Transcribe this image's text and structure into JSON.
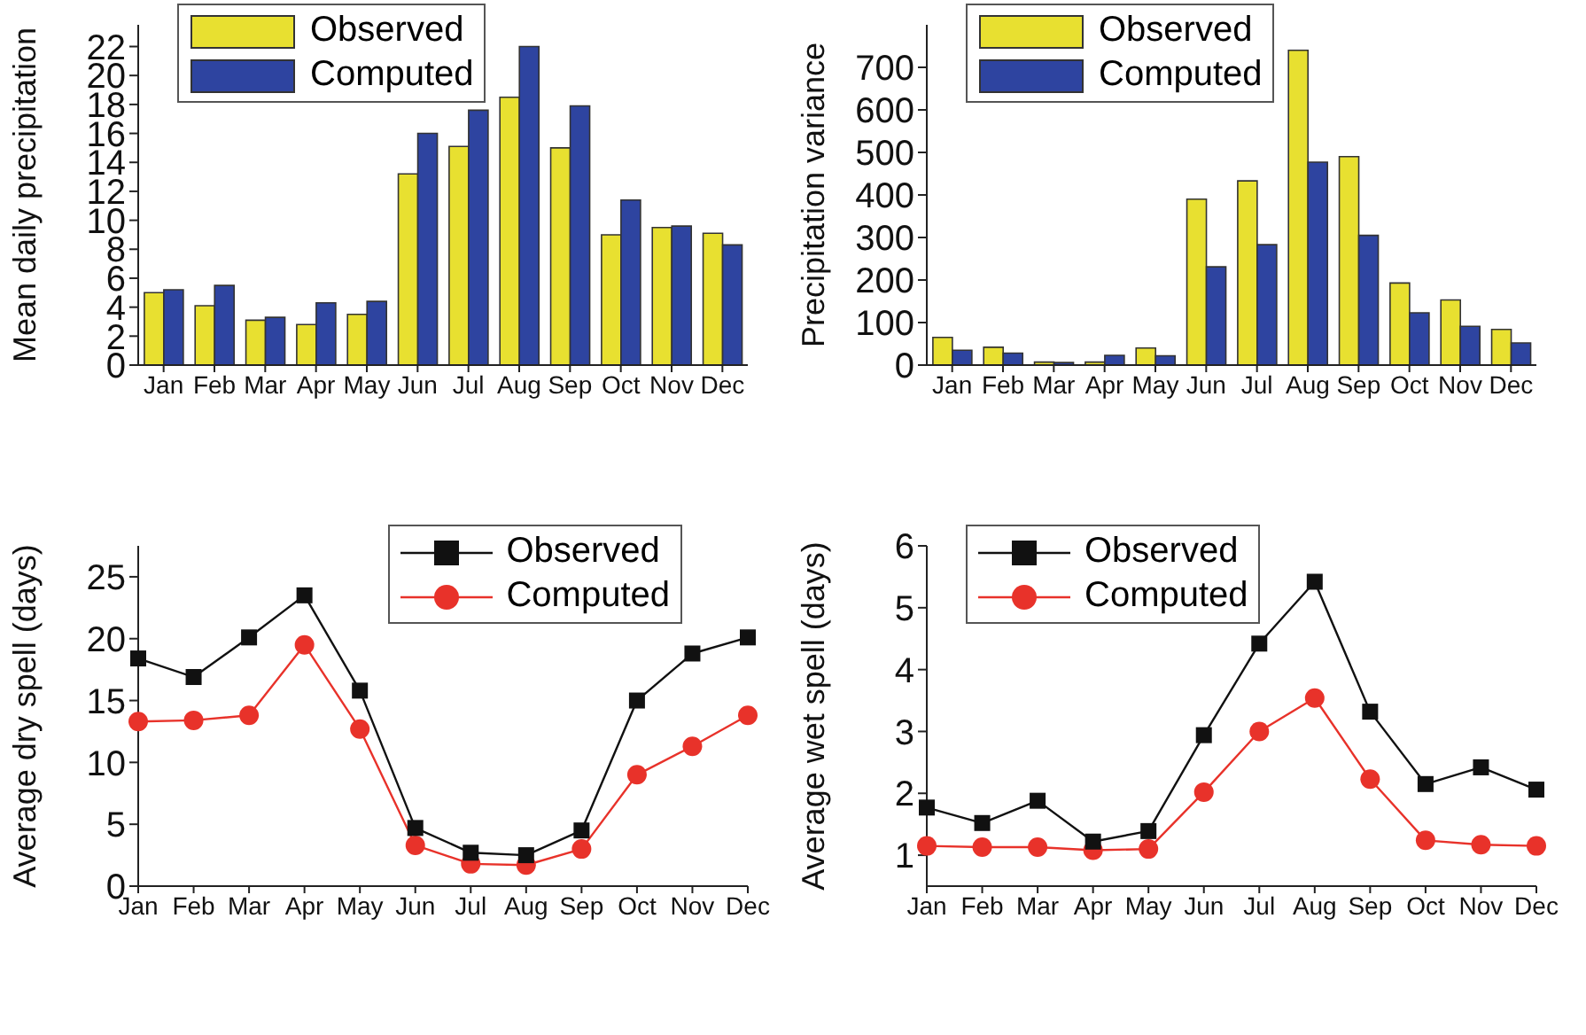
{
  "chart_data": [
    {
      "type": "bar",
      "ylabel": "Mean daily precipitation",
      "categories": [
        "Jan",
        "Feb",
        "Mar",
        "Apr",
        "May",
        "Jun",
        "Jul",
        "Aug",
        "Sep",
        "Oct",
        "Nov",
        "Dec"
      ],
      "ylim": [
        0,
        23.5
      ],
      "yticks": [
        0,
        2,
        4,
        6,
        8,
        10,
        12,
        14,
        16,
        18,
        20,
        22
      ],
      "legend": "top left",
      "grid": false,
      "series": [
        {
          "name": "Observed",
          "color": "#e8e030",
          "values": [
            5.0,
            4.1,
            3.1,
            2.8,
            3.5,
            13.2,
            15.1,
            18.5,
            15.0,
            9.0,
            9.5,
            9.1
          ]
        },
        {
          "name": "Computed",
          "color": "#2e44a0",
          "values": [
            5.2,
            5.5,
            3.3,
            4.3,
            4.4,
            16.0,
            17.6,
            22.0,
            17.9,
            11.4,
            9.6,
            8.3
          ]
        }
      ]
    },
    {
      "type": "bar",
      "ylabel": "Precipitation variance",
      "categories": [
        "Jan",
        "Feb",
        "Mar",
        "Apr",
        "May",
        "Jun",
        "Jul",
        "Aug",
        "Sep",
        "Oct",
        "Nov",
        "Dec"
      ],
      "ylim": [
        0,
        800
      ],
      "yticks": [
        0,
        100,
        200,
        300,
        400,
        500,
        600,
        700
      ],
      "legend": "top left",
      "grid": false,
      "series": [
        {
          "name": "Observed",
          "color": "#e8e030",
          "values": [
            65,
            42,
            7,
            7,
            40,
            390,
            433,
            740,
            490,
            193,
            153,
            84
          ]
        },
        {
          "name": "Computed",
          "color": "#2e44a0",
          "values": [
            35,
            28,
            6,
            23,
            22,
            231,
            283,
            477,
            305,
            123,
            91,
            52
          ]
        }
      ]
    },
    {
      "type": "line",
      "ylabel": "Average dry spell (days)",
      "categories": [
        "Jan",
        "Feb",
        "Mar",
        "Apr",
        "May",
        "Jun",
        "Jul",
        "Aug",
        "Sep",
        "Oct",
        "Nov",
        "Dec"
      ],
      "ylim": [
        0,
        27.5
      ],
      "yticks": [
        0,
        5,
        10,
        15,
        20,
        25
      ],
      "legend": "top right",
      "grid": false,
      "line_style": "solid",
      "series": [
        {
          "name": "Observed",
          "color": "#111111",
          "marker": "square",
          "values": [
            18.4,
            16.9,
            20.1,
            23.5,
            15.8,
            4.7,
            2.7,
            2.5,
            4.5,
            15.0,
            18.8,
            20.1
          ]
        },
        {
          "name": "Computed",
          "color": "#e8322a",
          "marker": "circle",
          "values": [
            13.3,
            13.4,
            13.8,
            19.5,
            12.7,
            3.3,
            1.8,
            1.7,
            3.0,
            9.0,
            11.3,
            13.8
          ]
        }
      ]
    },
    {
      "type": "line",
      "ylabel": "Average wet spell (days)",
      "categories": [
        "Jan",
        "Feb",
        "Mar",
        "Apr",
        "May",
        "Jun",
        "Jul",
        "Aug",
        "Sep",
        "Oct",
        "Nov",
        "Dec"
      ],
      "ylim": [
        0.5,
        6
      ],
      "yticks": [
        1,
        2,
        3,
        4,
        5,
        6
      ],
      "legend": "top left",
      "grid": false,
      "line_style": "solid",
      "series": [
        {
          "name": "Observed",
          "color": "#111111",
          "marker": "square",
          "values": [
            1.77,
            1.52,
            1.88,
            1.22,
            1.39,
            2.94,
            4.42,
            5.42,
            3.32,
            2.15,
            2.42,
            2.06
          ]
        },
        {
          "name": "Computed",
          "color": "#e8322a",
          "marker": "circle",
          "values": [
            1.15,
            1.13,
            1.13,
            1.08,
            1.1,
            2.02,
            3.0,
            3.54,
            2.23,
            1.24,
            1.17,
            1.15
          ]
        }
      ]
    }
  ]
}
